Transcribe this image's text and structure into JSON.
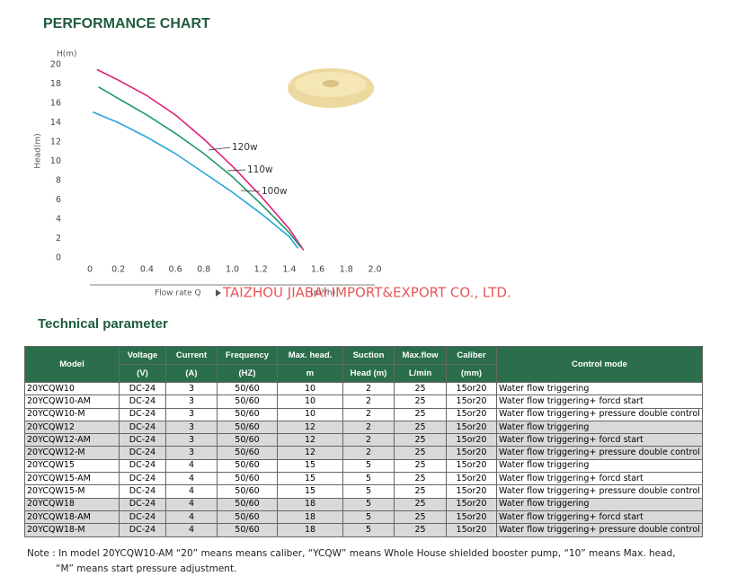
{
  "header": {
    "title": "PERFORMANCE CHART"
  },
  "chart_data": {
    "type": "line",
    "y_title": "H(m)",
    "y_label": "Head(m)",
    "x_label": "Flow rate Q",
    "x_unit": "(m³/h)",
    "xlim": [
      0,
      2
    ],
    "xticks": [
      0,
      0.2,
      0.4,
      0.6,
      0.8,
      {
        "value": 1,
        "label": "1.0"
      },
      1.2,
      1.4,
      1.6,
      1.8,
      {
        "value": 2,
        "label": "2.0"
      }
    ],
    "ylim": [
      0,
      20
    ],
    "yticks": [
      0,
      2,
      4,
      6,
      8,
      10,
      12,
      14,
      16,
      18,
      20
    ],
    "grid": false,
    "series": [
      {
        "name": "120w",
        "color": "#e0207a",
        "x": [
          0.05,
          0.2,
          0.4,
          0.6,
          0.8,
          1,
          1.2,
          1.4,
          1.5
        ],
        "values": [
          19.5,
          18.4,
          16.8,
          14.8,
          12.3,
          9.5,
          6.4,
          3.0,
          0.8
        ]
      },
      {
        "name": "110w",
        "color": "#1f9a6a",
        "x": [
          0.06,
          0.2,
          0.4,
          0.6,
          0.8,
          1,
          1.2,
          1.4,
          1.48
        ],
        "values": [
          17.7,
          16.5,
          14.8,
          12.9,
          10.8,
          8.4,
          5.6,
          2.6,
          1.1
        ]
      },
      {
        "name": "100w",
        "color": "#2aa6d6",
        "x": [
          0.02,
          0.2,
          0.4,
          0.6,
          0.8,
          1,
          1.2,
          1.4,
          1.46
        ],
        "values": [
          15.1,
          14.0,
          12.5,
          10.8,
          8.8,
          6.8,
          4.6,
          2.2,
          1.0
        ]
      }
    ]
  },
  "watermark": "TAIZHOU JIABAI IMPORT&EXPORT CO., LTD.",
  "section": {
    "title": "Technical parameter"
  },
  "table": {
    "header": [
      [
        "Model",
        "Voltage",
        "Current",
        "Frequency",
        "Max. head.",
        "Suction",
        "Max.flow",
        "Caliber",
        "Control mode"
      ],
      [
        "(V)",
        "(A)",
        "(HZ)",
        "m",
        "Head (m)",
        "L/min",
        "(mm)"
      ]
    ],
    "rows": [
      [
        "20YCQW10",
        "DC-24",
        "3",
        "50/60",
        "10",
        "2",
        "25",
        "15or20",
        "Water flow triggering"
      ],
      [
        "20YCQW10-AM",
        "DC-24",
        "3",
        "50/60",
        "10",
        "2",
        "25",
        "15or20",
        "Water flow triggering+ forcd start"
      ],
      [
        "20YCQW10-M",
        "DC-24",
        "3",
        "50/60",
        "10",
        "2",
        "25",
        "15or20",
        "Water flow triggering+ pressure double control"
      ],
      [
        "20YCQW12",
        "DC-24",
        "3",
        "50/60",
        "12",
        "2",
        "25",
        "15or20",
        "Water flow triggering"
      ],
      [
        "20YCQW12-AM",
        "DC-24",
        "3",
        "50/60",
        "12",
        "2",
        "25",
        "15or20",
        "Water flow triggering+ forcd start"
      ],
      [
        "20YCQW12-M",
        "DC-24",
        "3",
        "50/60",
        "12",
        "2",
        "25",
        "15or20",
        "Water flow triggering+ pressure double control"
      ],
      [
        "20YCQW15",
        "DC-24",
        "4",
        "50/60",
        "15",
        "5",
        "25",
        "15or20",
        "Water flow triggering"
      ],
      [
        "20YCQW15-AM",
        "DC-24",
        "4",
        "50/60",
        "15",
        "5",
        "25",
        "15or20",
        "Water flow triggering+ forcd start"
      ],
      [
        "20YCQW15-M",
        "DC-24",
        "4",
        "50/60",
        "15",
        "5",
        "25",
        "15or20",
        "Water flow triggering+ pressure double control"
      ],
      [
        "20YCQW18",
        "DC-24",
        "4",
        "50/60",
        "18",
        "5",
        "25",
        "15or20",
        "Water flow triggering"
      ],
      [
        "20YCQW18-AM",
        "DC-24",
        "4",
        "50/60",
        "18",
        "5",
        "25",
        "15or20",
        "Water flow triggering+ forcd start"
      ],
      [
        "20YCQW18-M",
        "DC-24",
        "4",
        "50/60",
        "18",
        "5",
        "25",
        "15or20",
        "Water flow triggering+ pressure double control"
      ]
    ]
  },
  "note": [
    "Note : In model 20YCQW10-AM “20” means means caliber, “YCQW” means Whole House shielded booster pump, “10” means Max. head,",
    "“M” means start pressure adjustment."
  ]
}
